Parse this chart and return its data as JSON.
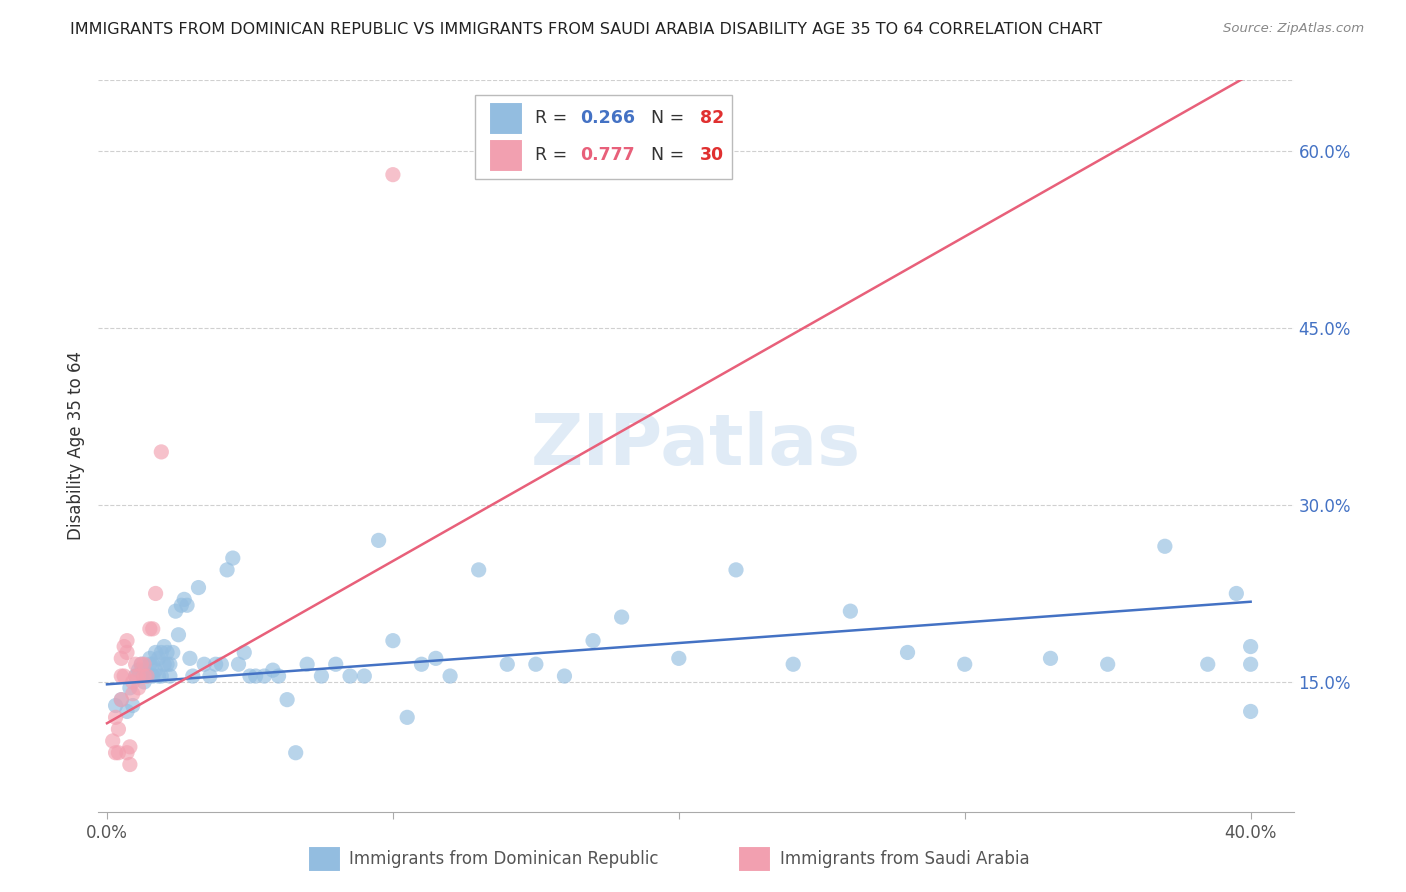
{
  "title": "IMMIGRANTS FROM DOMINICAN REPUBLIC VS IMMIGRANTS FROM SAUDI ARABIA DISABILITY AGE 35 TO 64 CORRELATION CHART",
  "source": "Source: ZipAtlas.com",
  "ylabel": "Disability Age 35 to 64",
  "y_ticks_right": [
    0.15,
    0.3,
    0.45,
    0.6
  ],
  "y_tick_labels_right": [
    "15.0%",
    "30.0%",
    "45.0%",
    "60.0%"
  ],
  "xlim": [
    -0.003,
    0.415
  ],
  "ylim": [
    0.04,
    0.66
  ],
  "legend_label_blue": "Immigrants from Dominican Republic",
  "legend_label_pink": "Immigrants from Saudi Arabia",
  "blue_color": "#93BDE0",
  "pink_color": "#F2A0B0",
  "blue_line_color": "#4472C4",
  "pink_line_color": "#E8607A",
  "blue_r": 0.266,
  "blue_n": 82,
  "pink_r": 0.777,
  "pink_n": 30,
  "blue_scatter_x": [
    0.003,
    0.005,
    0.007,
    0.008,
    0.009,
    0.01,
    0.011,
    0.012,
    0.013,
    0.013,
    0.014,
    0.015,
    0.015,
    0.016,
    0.016,
    0.017,
    0.017,
    0.018,
    0.018,
    0.019,
    0.019,
    0.02,
    0.02,
    0.021,
    0.021,
    0.022,
    0.022,
    0.023,
    0.024,
    0.025,
    0.026,
    0.027,
    0.028,
    0.029,
    0.03,
    0.032,
    0.034,
    0.036,
    0.038,
    0.04,
    0.042,
    0.044,
    0.046,
    0.048,
    0.05,
    0.052,
    0.055,
    0.058,
    0.06,
    0.063,
    0.066,
    0.07,
    0.075,
    0.08,
    0.085,
    0.09,
    0.095,
    0.1,
    0.105,
    0.11,
    0.115,
    0.12,
    0.13,
    0.14,
    0.15,
    0.16,
    0.17,
    0.18,
    0.2,
    0.22,
    0.24,
    0.26,
    0.28,
    0.3,
    0.33,
    0.35,
    0.37,
    0.385,
    0.395,
    0.4,
    0.4,
    0.4
  ],
  "blue_scatter_y": [
    0.13,
    0.135,
    0.125,
    0.145,
    0.13,
    0.155,
    0.16,
    0.165,
    0.15,
    0.16,
    0.155,
    0.17,
    0.165,
    0.155,
    0.165,
    0.16,
    0.175,
    0.155,
    0.17,
    0.155,
    0.175,
    0.165,
    0.18,
    0.165,
    0.175,
    0.155,
    0.165,
    0.175,
    0.21,
    0.19,
    0.215,
    0.22,
    0.215,
    0.17,
    0.155,
    0.23,
    0.165,
    0.155,
    0.165,
    0.165,
    0.245,
    0.255,
    0.165,
    0.175,
    0.155,
    0.155,
    0.155,
    0.16,
    0.155,
    0.135,
    0.09,
    0.165,
    0.155,
    0.165,
    0.155,
    0.155,
    0.27,
    0.185,
    0.12,
    0.165,
    0.17,
    0.155,
    0.245,
    0.165,
    0.165,
    0.155,
    0.185,
    0.205,
    0.17,
    0.245,
    0.165,
    0.21,
    0.175,
    0.165,
    0.17,
    0.165,
    0.265,
    0.165,
    0.225,
    0.125,
    0.18,
    0.165
  ],
  "pink_scatter_x": [
    0.002,
    0.003,
    0.003,
    0.004,
    0.004,
    0.005,
    0.005,
    0.005,
    0.006,
    0.006,
    0.007,
    0.007,
    0.007,
    0.008,
    0.008,
    0.009,
    0.009,
    0.01,
    0.01,
    0.011,
    0.011,
    0.012,
    0.013,
    0.013,
    0.014,
    0.015,
    0.016,
    0.017,
    0.019,
    0.1
  ],
  "pink_scatter_y": [
    0.1,
    0.09,
    0.12,
    0.09,
    0.11,
    0.135,
    0.155,
    0.17,
    0.155,
    0.18,
    0.185,
    0.175,
    0.09,
    0.08,
    0.095,
    0.14,
    0.15,
    0.155,
    0.165,
    0.145,
    0.155,
    0.165,
    0.155,
    0.165,
    0.155,
    0.195,
    0.195,
    0.225,
    0.345,
    0.58
  ],
  "blue_trend_x": [
    0.0,
    0.4
  ],
  "blue_trend_y": [
    0.148,
    0.218
  ],
  "pink_trend_x": [
    0.0,
    0.4
  ],
  "pink_trend_y": [
    0.115,
    0.665
  ]
}
